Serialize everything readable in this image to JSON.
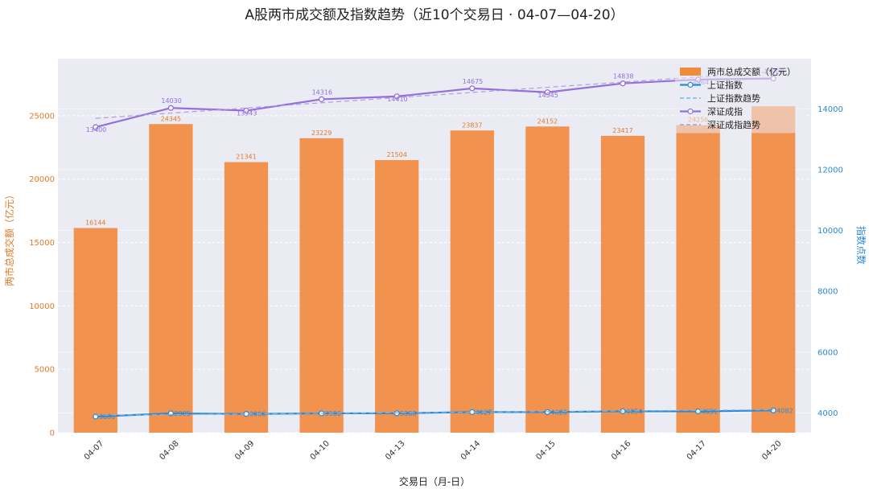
{
  "chart_data": {
    "type": "bar+line",
    "title": "A股两市成交额及指数趋势（近10个交易日 · 04-07—04-20）",
    "xlabel": "交易日（月-日）",
    "ylabel_left": "两市总成交额（亿元）",
    "ylabel_right": "指数点数",
    "categories": [
      "04-07",
      "04-08",
      "04-09",
      "04-10",
      "04-13",
      "04-14",
      "04-15",
      "04-16",
      "04-17",
      "04-20"
    ],
    "ylim_left": [
      0,
      29500
    ],
    "ylim_right": [
      3350,
      15650
    ],
    "left_ticks": [
      0,
      5000,
      10000,
      15000,
      20000,
      25000
    ],
    "right_ticks": [
      4000,
      6000,
      8000,
      10000,
      12000,
      14000
    ],
    "grid": true,
    "legend_position": "top-right",
    "series": [
      {
        "name": "两市总成交额（亿元）",
        "kind": "bar",
        "axis": "left",
        "color": "#f28a3c",
        "values": [
          16144,
          24345,
          21341,
          23229,
          21504,
          23837,
          24152,
          23417,
          24256,
          25750
        ],
        "labels": [
          "16144",
          "24345",
          "21341",
          "23229",
          "21504",
          "23837",
          "24152",
          "23417",
          "24256",
          ""
        ]
      },
      {
        "name": "上证指数",
        "kind": "line",
        "axis": "right",
        "color": "#2a8ad8",
        "values": [
          3880,
          3985,
          3966,
          3986,
          3988,
          4027,
          4028,
          4054,
          4051,
          4082
        ],
        "labels": [
          "3880",
          "3985",
          "3966",
          "3986",
          "3988",
          "4027",
          "4028",
          "4054",
          "4051",
          "4082"
        ]
      },
      {
        "name": "上证指数趋势",
        "kind": "trend",
        "axis": "right",
        "color": "#79b8e8",
        "values": [
          3925,
          3945,
          3965,
          3985,
          4005,
          4025,
          4045,
          4065,
          4085,
          4105
        ]
      },
      {
        "name": "深证成指",
        "kind": "line",
        "axis": "right",
        "color": "#9370db",
        "values": [
          13400,
          14030,
          13943,
          14316,
          14410,
          14675,
          14545,
          14838,
          14964,
          15000
        ],
        "labels": [
          "13400",
          "14030",
          "13943",
          "14316",
          "14410",
          "14675",
          "14545",
          "14838",
          "14964",
          "15000"
        ]
      },
      {
        "name": "深证成指趋势",
        "kind": "trend",
        "axis": "right",
        "color": "#b09ce0",
        "values": [
          13690,
          13860,
          14030,
          14200,
          14370,
          14540,
          14710,
          14880,
          15050,
          15220
        ]
      }
    ]
  }
}
